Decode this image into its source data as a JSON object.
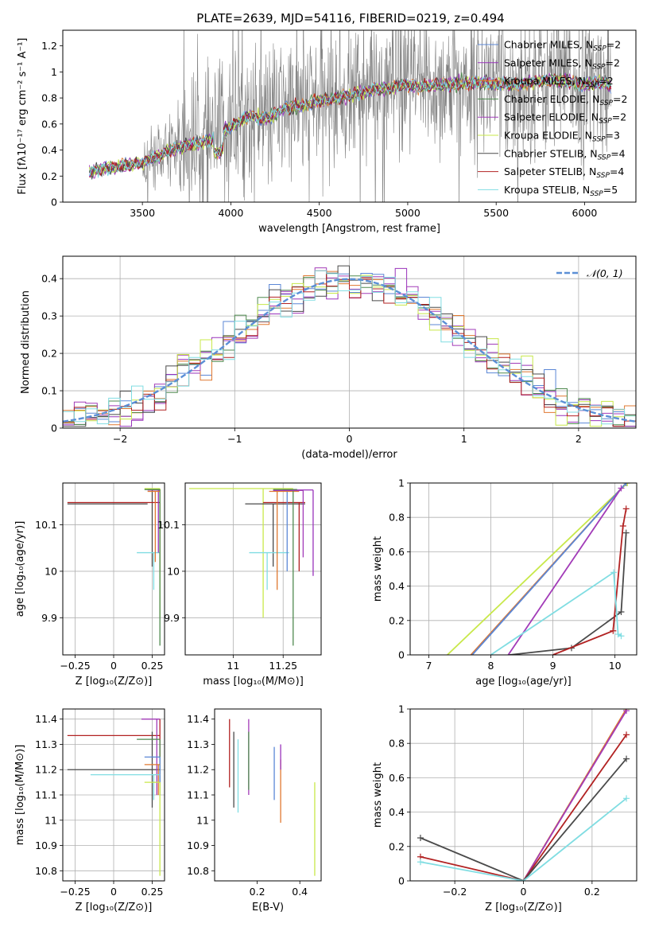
{
  "figure": {
    "title": "PLATE=2639, MJD=54116, FIBERID=0219, z=0.494"
  },
  "colors": {
    "chabrier_miles": "#5b87d6",
    "salpeter_miles": "#9933bb",
    "kroupa_miles": "#e07830",
    "chabrier_elodie": "#4f8a4f",
    "salpeter_elodie": "#a23bb8",
    "kroupa_elodie": "#c8e84a",
    "chabrier_stelib": "#4a4a4a",
    "salpeter_stelib": "#b22222",
    "kroupa_stelib": "#80dde2",
    "data": "#808080",
    "normal": "#5b8fd6"
  },
  "chart_data": [
    {
      "id": "spectrum",
      "type": "line",
      "xlabel": "wavelength [Angstrom, rest frame]",
      "ylabel": "Flux [fλ10⁻¹⁷ erg cm⁻² s⁻¹ A⁻¹]",
      "xlim": [
        3050,
        6290
      ],
      "ylim": [
        0,
        1.32
      ],
      "xticks": [
        3500,
        4000,
        4500,
        5000,
        5500,
        6000
      ],
      "yticks": [
        0.0,
        0.2,
        0.4,
        0.6,
        0.8,
        1.0,
        1.2
      ],
      "legend_position": "top-right",
      "legend": [
        "Chabrier MILES, N_SSP=2",
        "Salpeter MILES, N_SSP=2",
        "Kroupa MILES, N_SSP=2",
        "Chabrier ELODIE, N_SSP=2",
        "Salpeter ELODIE, N_SSP=2",
        "Kroupa ELODIE, N_SSP=3",
        "Chabrier STELIB, N_SSP=4",
        "Salpeter STELIB, N_SSP=4",
        "Kroupa STELIB, N_SSP=5"
      ],
      "model_continuum": {
        "x": [
          3200,
          3300,
          3400,
          3500,
          3600,
          3700,
          3800,
          3900,
          4000,
          4100,
          4200,
          4300,
          4400,
          4500,
          4600,
          4700,
          4800,
          4900,
          5000,
          5100,
          5200,
          5300,
          5400,
          5500,
          5600,
          5700,
          5800,
          5900,
          6000,
          6100,
          6150
        ],
        "y": [
          0.23,
          0.26,
          0.28,
          0.3,
          0.36,
          0.42,
          0.45,
          0.48,
          0.58,
          0.66,
          0.64,
          0.72,
          0.74,
          0.78,
          0.8,
          0.83,
          0.86,
          0.88,
          0.9,
          0.88,
          0.9,
          0.91,
          0.92,
          0.91,
          0.9,
          0.92,
          0.94,
          0.93,
          0.9,
          0.92,
          0.9
        ]
      }
    },
    {
      "id": "residuals",
      "type": "bar",
      "xlabel": "(data-model)/error",
      "ylabel": "Normed distribution",
      "xlim": [
        -2.5,
        2.5
      ],
      "ylim": [
        0,
        0.46
      ],
      "xticks": [
        -2,
        -1,
        0,
        1,
        2
      ],
      "yticks": [
        0.0,
        0.1,
        0.2,
        0.3,
        0.4
      ],
      "legend": [
        "𝒩(0, 1)"
      ],
      "legend_position": "top-right",
      "bin_width": 0.1
    },
    {
      "id": "age_vs_Z",
      "type": "scatter",
      "xlabel": "Z [log₁₀(Z/Z⊙)]",
      "ylabel": "age  [log₁₀(age/yr)]",
      "xlim": [
        -0.33,
        0.33
      ],
      "ylim": [
        9.82,
        10.19
      ],
      "xticks": [
        -0.25,
        0.0,
        0.25
      ],
      "yticks": [
        9.9,
        10.0,
        10.1
      ],
      "segments": [
        {
          "s": "chabrier_stelib",
          "h": [
            -0.3,
            0.22,
            10.145
          ],
          "v": [
            0.25,
            10.01,
            10.175
          ]
        },
        {
          "s": "salpeter_stelib",
          "h": [
            -0.3,
            0.3,
            10.148
          ],
          "v": [
            0.3,
            10.0,
            10.148
          ]
        },
        {
          "s": "kroupa_elodie",
          "h": [
            0.2,
            0.3,
            10.178
          ],
          "v": [
            0.3,
            9.9,
            10.178
          ]
        },
        {
          "s": "kroupa_stelib",
          "h": [
            0.15,
            0.3,
            10.04
          ],
          "v": [
            0.26,
            9.96,
            10.04
          ]
        },
        {
          "s": "salpeter_miles",
          "h": [
            0.22,
            0.3,
            10.175
          ],
          "v": [
            0.29,
            10.04,
            10.175
          ]
        },
        {
          "s": "chabrier_elodie",
          "h": [
            0.2,
            0.3,
            10.176
          ],
          "v": [
            0.3,
            9.84,
            10.176
          ]
        },
        {
          "s": "kroupa_miles",
          "h": [
            0.22,
            0.3,
            10.172
          ],
          "v": [
            0.27,
            10.02,
            10.172
          ]
        }
      ]
    },
    {
      "id": "age_vs_mass",
      "type": "scatter",
      "xlabel": "mass [log₁₀(M/M⊙)]",
      "ylabel": "",
      "xlim": [
        10.76,
        11.44
      ],
      "ylim": [
        9.82,
        10.19
      ],
      "xticks": [
        11.0,
        11.25
      ],
      "yticks": [
        9.9,
        10.0,
        10.1
      ],
      "segments": [
        {
          "s": "kroupa_elodie",
          "h": [
            10.78,
            11.3,
            10.178
          ],
          "v": [
            11.15,
            9.9,
            10.178
          ]
        },
        {
          "s": "chabrier_stelib",
          "h": [
            11.06,
            11.36,
            10.145
          ],
          "v": [
            11.2,
            10.01,
            10.145
          ]
        },
        {
          "s": "salpeter_stelib",
          "h": [
            11.15,
            11.36,
            10.148
          ],
          "v": [
            11.33,
            10.0,
            10.148
          ]
        },
        {
          "s": "kroupa_stelib",
          "h": [
            11.08,
            11.28,
            10.04
          ],
          "v": [
            11.17,
            9.96,
            10.04
          ]
        },
        {
          "s": "salpeter_miles",
          "h": [
            11.25,
            11.4,
            10.175
          ],
          "v": [
            11.4,
            9.99,
            10.175
          ]
        },
        {
          "s": "chabrier_miles",
          "h": [
            11.2,
            11.3,
            10.173
          ],
          "v": [
            11.27,
            10.0,
            10.173
          ]
        },
        {
          "s": "kroupa_miles",
          "h": [
            11.18,
            11.33,
            10.172
          ],
          "v": [
            11.22,
            9.96,
            10.172
          ]
        },
        {
          "s": "chabrier_elodie",
          "h": [
            11.2,
            11.32,
            10.176
          ],
          "v": [
            11.3,
            9.84,
            10.176
          ]
        },
        {
          "s": "salpeter_elodie",
          "h": [
            11.2,
            11.35,
            10.174
          ],
          "v": [
            11.35,
            10.03,
            10.174
          ]
        }
      ]
    },
    {
      "id": "weight_vs_age",
      "type": "line",
      "xlabel": "age  [log₁₀(age/yr)]",
      "ylabel": "mass weight",
      "xlim": [
        6.7,
        10.35
      ],
      "ylim": [
        0,
        1.0
      ],
      "xticks": [
        7,
        8,
        9,
        10
      ],
      "yticks": [
        0.0,
        0.2,
        0.4,
        0.6,
        0.8,
        1.0
      ],
      "series": [
        {
          "s": "kroupa_elodie",
          "x": [
            7.3,
            10.2
          ],
          "y": [
            0,
            1.0
          ]
        },
        {
          "s": "kroupa_miles",
          "x": [
            7.68,
            10.18
          ],
          "y": [
            0,
            1.0
          ]
        },
        {
          "s": "chabrier_miles",
          "x": [
            7.7,
            10.18
          ],
          "y": [
            0,
            1.0
          ]
        },
        {
          "s": "salpeter_elodie",
          "x": [
            8.28,
            10.1
          ],
          "y": [
            0,
            0.97
          ]
        },
        {
          "s": "chabrier_stelib",
          "x": [
            8.3,
            9.3,
            10.1,
            10.18
          ],
          "y": [
            0,
            0.04,
            0.25,
            0.71
          ]
        },
        {
          "s": "salpeter_stelib",
          "x": [
            9.0,
            9.97,
            10.13,
            10.18
          ],
          "y": [
            0,
            0.14,
            0.75,
            0.85
          ]
        },
        {
          "s": "kroupa_stelib",
          "x": [
            8.0,
            9.98,
            10.05,
            10.1
          ],
          "y": [
            0,
            0.48,
            0.12,
            0.11
          ]
        }
      ]
    },
    {
      "id": "mass_vs_Z",
      "type": "scatter",
      "xlabel": "Z [log₁₀(Z/Z⊙)]",
      "ylabel": "mass [log₁₀(M/M⊙)]",
      "xlim": [
        -0.33,
        0.33
      ],
      "ylim": [
        10.76,
        11.44
      ],
      "xticks": [
        -0.25,
        0.0,
        0.25
      ],
      "yticks": [
        10.8,
        10.9,
        11.0,
        11.1,
        11.2,
        11.3,
        11.4
      ],
      "segments": [
        {
          "s": "salpeter_stelib",
          "h": [
            -0.3,
            0.3,
            11.335
          ],
          "v": [
            0.3,
            11.25,
            11.4
          ]
        },
        {
          "s": "chabrier_stelib",
          "h": [
            -0.3,
            0.3,
            11.2
          ],
          "v": [
            0.25,
            11.05,
            11.35
          ]
        },
        {
          "s": "salpeter_elodie",
          "h": [
            0.18,
            0.3,
            11.4
          ],
          "v": [
            0.28,
            11.1,
            11.4
          ]
        },
        {
          "s": "chabrier_elodie",
          "h": [
            0.15,
            0.3,
            11.32
          ],
          "v": [
            0.3,
            11.1,
            11.32
          ]
        },
        {
          "s": "chabrier_miles",
          "h": [
            0.2,
            0.3,
            11.25
          ],
          "v": [
            0.3,
            11.15,
            11.25
          ]
        },
        {
          "s": "kroupa_miles",
          "h": [
            0.2,
            0.3,
            11.22
          ],
          "v": [
            0.29,
            11.1,
            11.22
          ]
        },
        {
          "s": "kroupa_stelib",
          "h": [
            -0.15,
            0.3,
            11.18
          ],
          "v": [
            0.26,
            11.08,
            11.18
          ]
        },
        {
          "s": "kroupa_elodie",
          "h": [
            0.2,
            0.3,
            11.15
          ],
          "v": [
            0.3,
            10.78,
            11.15
          ]
        }
      ]
    },
    {
      "id": "mass_vs_EBV",
      "type": "scatter",
      "xlabel": "E(B-V)",
      "ylabel": "",
      "xlim": [
        0.0,
        0.5
      ],
      "ylim": [
        10.76,
        11.44
      ],
      "xticks": [
        0.2,
        0.4
      ],
      "yticks": [
        10.8,
        10.9,
        11.0,
        11.1,
        11.2,
        11.3,
        11.4
      ],
      "segments": [
        {
          "s": "salpeter_stelib",
          "v": [
            0.07,
            11.13,
            11.4
          ]
        },
        {
          "s": "chabrier_stelib",
          "v": [
            0.09,
            11.05,
            11.35
          ]
        },
        {
          "s": "kroupa_stelib",
          "v": [
            0.11,
            11.03,
            11.32
          ]
        },
        {
          "s": "salpeter_elodie",
          "v": [
            0.16,
            11.1,
            11.4
          ]
        },
        {
          "s": "chabrier_elodie",
          "v": [
            0.16,
            11.12,
            11.35
          ]
        },
        {
          "s": "chabrier_miles",
          "v": [
            0.28,
            11.08,
            11.29
          ]
        },
        {
          "s": "kroupa_miles",
          "v": [
            0.31,
            10.99,
            11.24
          ]
        },
        {
          "s": "salpeter_miles",
          "v": [
            0.31,
            11.2,
            11.3
          ]
        },
        {
          "s": "kroupa_elodie",
          "v": [
            0.47,
            10.78,
            11.15
          ]
        }
      ]
    },
    {
      "id": "weight_vs_Z",
      "type": "line",
      "xlabel": "Z [log₁₀(Z/Z⊙)]",
      "ylabel": "mass weight",
      "xlim": [
        -0.33,
        0.33
      ],
      "ylim": [
        0,
        1.0
      ],
      "xticks": [
        -0.2,
        0.0,
        0.2
      ],
      "yticks": [
        0.0,
        0.2,
        0.4,
        0.6,
        0.8,
        1.0
      ],
      "series": [
        {
          "s": "kroupa_elodie",
          "x": [
            0.0,
            0.3
          ],
          "y": [
            0,
            1.0
          ]
        },
        {
          "s": "kroupa_miles",
          "x": [
            0.0,
            0.3
          ],
          "y": [
            0,
            1.0
          ]
        },
        {
          "s": "salpeter_elodie",
          "x": [
            0.0,
            0.3
          ],
          "y": [
            0,
            0.99
          ]
        },
        {
          "s": "salpeter_stelib",
          "x": [
            -0.3,
            0.0,
            0.3
          ],
          "y": [
            0.14,
            0,
            0.85
          ]
        },
        {
          "s": "chabrier_stelib",
          "x": [
            -0.3,
            0.0,
            0.3
          ],
          "y": [
            0.25,
            0,
            0.71
          ]
        },
        {
          "s": "kroupa_stelib",
          "x": [
            -0.3,
            0.0,
            0.3
          ],
          "y": [
            0.11,
            0,
            0.48
          ]
        }
      ]
    }
  ]
}
